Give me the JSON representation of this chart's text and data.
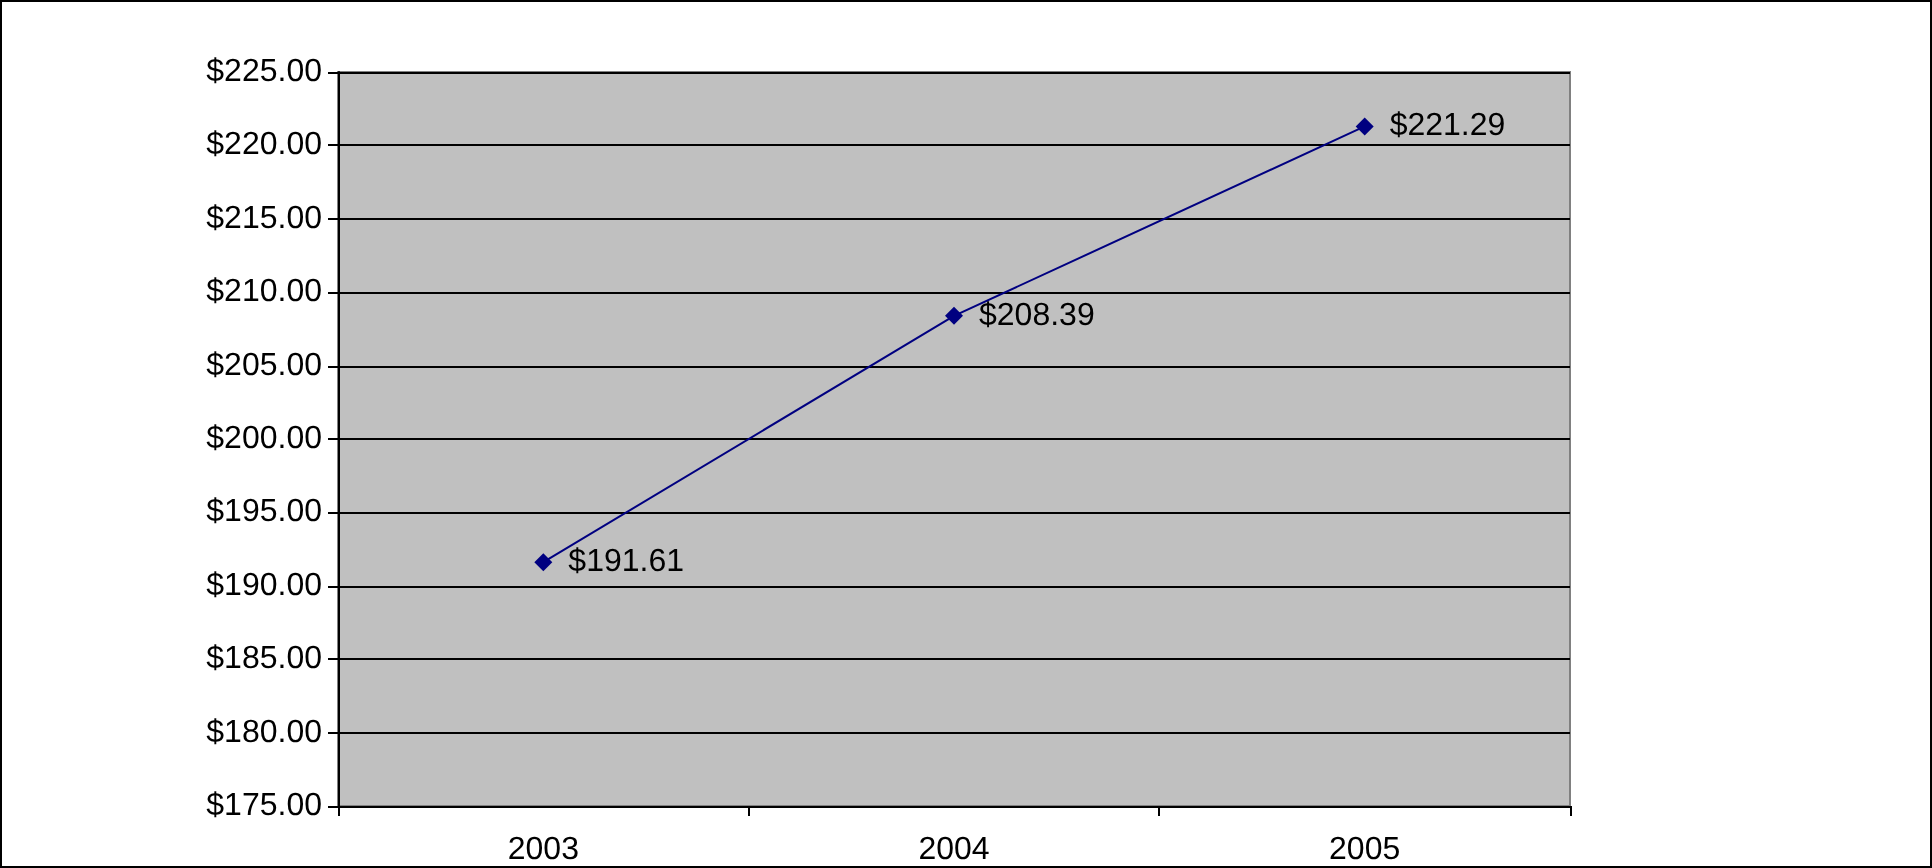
{
  "chart_data": {
    "type": "line",
    "categories": [
      "2003",
      "2004",
      "2005"
    ],
    "series": [
      {
        "color": "#000080",
        "values": [
          191.61,
          208.39,
          221.29
        ],
        "value_labels": [
          "$191.61",
          "$208.39",
          "$221.29"
        ]
      }
    ],
    "ylim": [
      175,
      225
    ],
    "yticks": [
      {
        "value": 175,
        "label": "$175.00"
      },
      {
        "value": 180,
        "label": "$180.00"
      },
      {
        "value": 185,
        "label": "$185.00"
      },
      {
        "value": 190,
        "label": "$190.00"
      },
      {
        "value": 195,
        "label": "$195.00"
      },
      {
        "value": 200,
        "label": "$200.00"
      },
      {
        "value": 205,
        "label": "$205.00"
      },
      {
        "value": 210,
        "label": "$210.00"
      },
      {
        "value": 215,
        "label": "$215.00"
      },
      {
        "value": 220,
        "label": "$220.00"
      },
      {
        "value": 225,
        "label": "$225.00"
      }
    ],
    "grid": "y",
    "marker": "diamond",
    "line_style": "solid"
  }
}
